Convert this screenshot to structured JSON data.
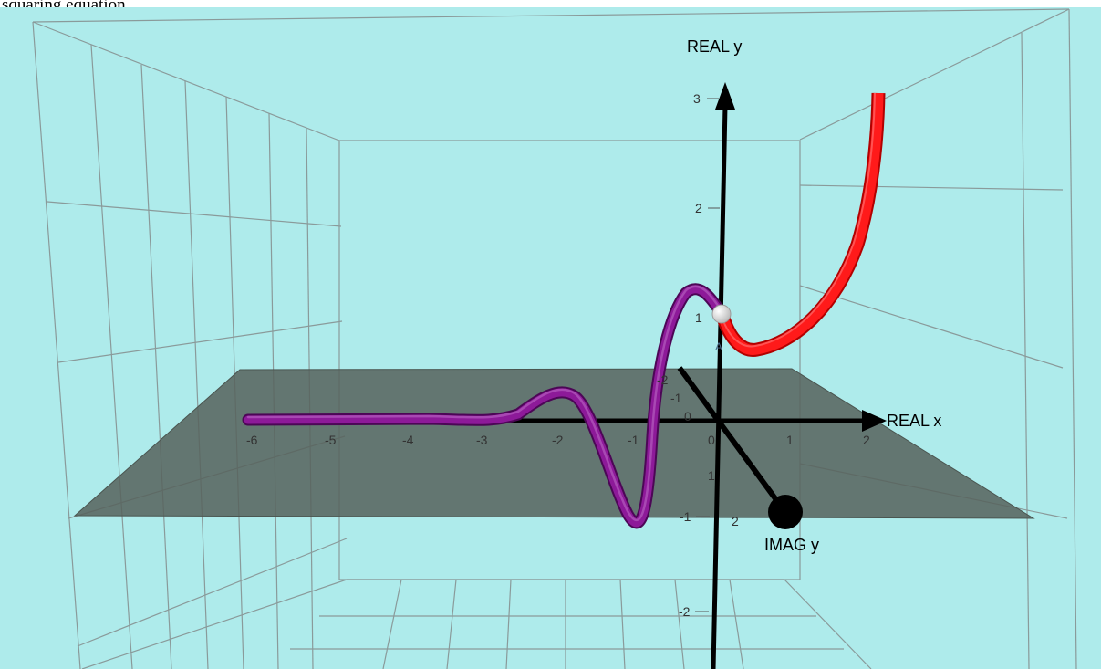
{
  "caption": "squaring equation",
  "colors": {
    "background": "#aeebeb",
    "grid": "#8a9a9a",
    "plane": "#56625c",
    "axis": "#000000",
    "curve_complex": "#7a0f86",
    "curve_real": "#ff1a1a",
    "point": "#ffffff",
    "imag_endpoint": "#000000"
  },
  "axes": {
    "real_x_label": "REAL x",
    "real_y_label": "REAL y",
    "imag_y_label": "IMAG y"
  },
  "ticks": {
    "real_x": [
      "-6",
      "-5",
      "-4",
      "-3",
      "-2",
      "-1",
      "0",
      "1",
      "2"
    ],
    "real_y": [
      "3",
      "2",
      "1",
      "-1",
      "-2"
    ],
    "imag_y": [
      "-2",
      "-1",
      "0",
      "1",
      "2"
    ],
    "origin_small": "A"
  },
  "objects": [
    {
      "name": "complex-curve",
      "color": "purple"
    },
    {
      "name": "real-curve",
      "color": "red"
    },
    {
      "name": "point-A",
      "color": "white"
    }
  ]
}
